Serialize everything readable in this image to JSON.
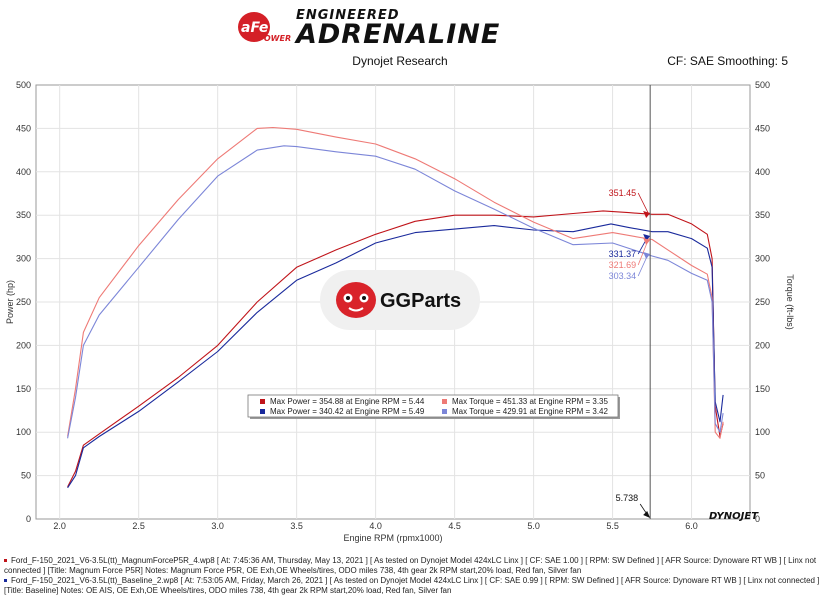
{
  "header": {
    "logo_badge": "aFe",
    "logo_badge_sub": "POWER",
    "logo_top": "ENGINEERED",
    "logo_main": "ADRENALINE",
    "center_title": "Dynojet Research",
    "right_text": "CF: SAE Smoothing: 5"
  },
  "colors": {
    "red_power": "#c0141a",
    "red_torque": "#ee7a76",
    "blue_power": "#1a2a9c",
    "blue_torque": "#7c86d8",
    "gg_red": "#d9232a"
  },
  "watermark": {
    "icon": "gg-mascot-icon",
    "text": "GGParts"
  },
  "brand_corner": "DYNOJET",
  "chart_data": {
    "type": "line",
    "xlabel": "Engine RPM (rpmx1000)",
    "ylabel_left": "Power (hp)",
    "ylabel_right": "Torque (ft-lbs)",
    "xlim": [
      1.85,
      6.37
    ],
    "ylim": [
      0,
      500
    ],
    "x_ticks": [
      2.0,
      2.5,
      3.0,
      3.5,
      4.0,
      4.5,
      5.0,
      5.5,
      6.0
    ],
    "x_tick_labels": [
      "2.0",
      "2.5",
      "3.0",
      "3.5",
      "4.0",
      "4.5",
      "5.0",
      "5.5",
      "6.0"
    ],
    "y_ticks": [
      0,
      50,
      100,
      150,
      200,
      250,
      300,
      350,
      400,
      450,
      500
    ],
    "grid": true,
    "cursor": {
      "x": 5.738,
      "label": "5.738"
    },
    "cursor_values": [
      {
        "series": "red_power",
        "value": "351.45"
      },
      {
        "series": "blue_power",
        "value": "331.37"
      },
      {
        "series": "red_torque",
        "value": "321.69"
      },
      {
        "series": "blue_torque",
        "value": "303.34"
      }
    ],
    "legend": [
      {
        "color": "red_power",
        "text": "Max Power = 354.88 at Engine RPM = 5.44"
      },
      {
        "color": "red_torque",
        "text": "Max Torque = 451.33 at Engine RPM = 3.35"
      },
      {
        "color": "blue_power",
        "text": "Max Power = 340.42 at Engine RPM = 5.49"
      },
      {
        "color": "blue_torque",
        "text": "Max Torque = 429.91 at Engine RPM = 3.42"
      }
    ],
    "series": [
      {
        "key": "red_power",
        "x": [
          2.05,
          2.1,
          2.15,
          2.25,
          2.5,
          2.75,
          3.0,
          3.25,
          3.5,
          3.75,
          4.0,
          4.25,
          4.5,
          4.75,
          5.0,
          5.25,
          5.44,
          5.6,
          5.75,
          5.85,
          6.0,
          6.1,
          6.13,
          6.15,
          6.18,
          6.2
        ],
        "y": [
          37,
          55,
          85,
          98,
          130,
          163,
          200,
          250,
          290,
          310,
          328,
          343,
          350,
          350,
          348,
          352,
          355,
          353,
          351,
          351,
          340,
          328,
          300,
          130,
          95,
          110
        ]
      },
      {
        "key": "blue_power",
        "x": [
          2.05,
          2.1,
          2.15,
          2.25,
          2.5,
          2.75,
          3.0,
          3.25,
          3.5,
          3.75,
          4.0,
          4.25,
          4.5,
          4.75,
          5.0,
          5.25,
          5.49,
          5.6,
          5.75,
          5.85,
          6.0,
          6.1,
          6.13,
          6.15,
          6.18,
          6.2
        ],
        "y": [
          36,
          50,
          82,
          95,
          124,
          158,
          193,
          238,
          275,
          295,
          318,
          330,
          334,
          338,
          333,
          331,
          340,
          336,
          331,
          331,
          323,
          312,
          290,
          135,
          112,
          143
        ]
      },
      {
        "key": "red_torque",
        "x": [
          2.05,
          2.1,
          2.15,
          2.25,
          2.5,
          2.75,
          3.0,
          3.25,
          3.35,
          3.5,
          3.75,
          4.0,
          4.25,
          4.5,
          4.75,
          5.0,
          5.25,
          5.5,
          5.75,
          5.85,
          6.0,
          6.1,
          6.13,
          6.15,
          6.18,
          6.2
        ],
        "y": [
          95,
          150,
          215,
          255,
          315,
          368,
          415,
          450,
          451,
          449,
          440,
          432,
          415,
          392,
          365,
          342,
          323,
          330,
          322,
          310,
          292,
          282,
          255,
          100,
          93,
          112
        ]
      },
      {
        "key": "blue_torque",
        "x": [
          2.05,
          2.1,
          2.15,
          2.25,
          2.5,
          2.75,
          3.0,
          3.25,
          3.42,
          3.5,
          3.75,
          4.0,
          4.25,
          4.5,
          4.75,
          5.0,
          5.25,
          5.5,
          5.75,
          5.85,
          6.0,
          6.1,
          6.13,
          6.15,
          6.18,
          6.2
        ],
        "y": [
          93,
          140,
          200,
          235,
          290,
          345,
          395,
          425,
          430,
          429,
          423,
          418,
          403,
          378,
          357,
          335,
          316,
          318,
          303,
          298,
          283,
          275,
          250,
          110,
          100,
          122
        ]
      }
    ]
  },
  "footer": [
    {
      "marker": "red_power",
      "text": "Ford_F-150_2021_V6-3.5L(tt)_MagnumForceP5R_4.wp8 [ At: 7:45:36 AM, Thursday, May 13, 2021 ] [ As tested on Dynojet Model 424xLC Linx ] [ CF: SAE 1.00 ] [ RPM: SW Defined ] [ AFR Source: Dynoware RT WB ] [ Linx not"
    },
    {
      "marker": "",
      "text": "connected ] [Title: Magnum Force P5R]  Notes: Magnum Force P5R, OE Exh,OE Wheels/tires, ODO miles 738, 4th gear 2k RPM start,20% load, Red fan, Silver fan"
    },
    {
      "marker": "blue_power",
      "text": "Ford_F-150_2021_V6-3.5L(tt)_Baseline_2.wp8 [ At: 7:53:05 AM, Friday, March 26, 2021 ] [ As tested on Dynojet Model 424xLC Linx ] [ CF: SAE 0.99 ] [ RPM: SW Defined ] [ AFR Source: Dynoware RT WB ] [ Linx not connected ]"
    },
    {
      "marker": "",
      "text": "[Title: Baseline]  Notes: OE AIS, OE Exh,OE Wheels/tires, ODO miles 738, 4th gear 2k RPM start,20% load, Red fan, Silver fan"
    }
  ]
}
